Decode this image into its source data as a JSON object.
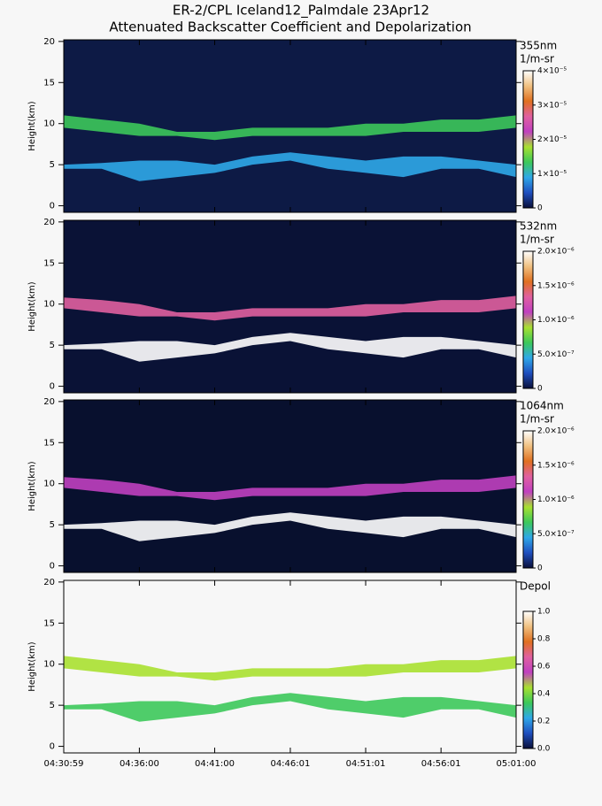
{
  "title": "ER-2/CPL Iceland12_Palmdale 23Apr12",
  "subtitle": "Attenuated Backscatter Coefficient and Depolarization",
  "x_axis": {
    "xlim": [
      "04:30:59",
      "05:01:00"
    ],
    "xticks": [
      "04:30:59",
      "04:36:00",
      "04:41:00",
      "04:46:01",
      "04:51:01",
      "04:56:01",
      "05:01:00"
    ]
  },
  "colormap": [
    "#0a0f3a",
    "#1f4fbf",
    "#2fa8e8",
    "#3cc85a",
    "#a8e030",
    "#c040c0",
    "#e060a0",
    "#e07020",
    "#f0c080",
    "#ffffff"
  ],
  "chart_data": [
    {
      "type": "curtain",
      "ylabel": "Height(km)",
      "ylim": [
        -0.8,
        20.2
      ],
      "yticks": [
        0,
        5,
        10,
        15,
        20
      ],
      "background": "#0d1a45",
      "colorbar": {
        "title": "355nm",
        "unit": "1/m-sr",
        "lim": [
          0,
          4e-05
        ],
        "ticks": [
          {
            "value": 0,
            "label": "0"
          },
          {
            "value": 1e-05,
            "label": "1×10⁻⁵"
          },
          {
            "value": 2e-05,
            "label": "2×10⁻⁵"
          },
          {
            "value": 3e-05,
            "label": "3×10⁻⁵"
          },
          {
            "value": 4e-05,
            "label": "4×10⁻⁵"
          }
        ]
      },
      "x": [
        "04:30:59",
        "04:33:30",
        "04:36:00",
        "04:38:30",
        "04:41:00",
        "04:43:30",
        "04:46:01",
        "04:48:31",
        "04:51:01",
        "04:53:31",
        "04:56:01",
        "04:58:31",
        "05:01:00"
      ],
      "layers": [
        {
          "top": [
            11,
            10.5,
            10,
            9,
            9,
            9.5,
            9.5,
            9.5,
            10,
            10,
            10.5,
            10.5,
            11
          ],
          "base": [
            9.5,
            9,
            8.5,
            8.5,
            8,
            8.5,
            8.5,
            8.5,
            8.5,
            9,
            9,
            9,
            9.5
          ],
          "level": 1.5e-05
        },
        {
          "top": [
            5,
            5.2,
            5.5,
            5.5,
            5,
            6,
            6.5,
            6,
            5.5,
            6,
            6,
            5.5,
            5
          ],
          "base": [
            4.5,
            4.5,
            3,
            3.5,
            4,
            5,
            5.5,
            4.5,
            4,
            3.5,
            4.5,
            4.5,
            3.5
          ],
          "level": 8e-06
        }
      ]
    },
    {
      "type": "curtain",
      "ylabel": "Height(km)",
      "ylim": [
        -0.8,
        20.2
      ],
      "yticks": [
        0,
        5,
        10,
        15,
        20
      ],
      "background": "#0a1236",
      "colorbar": {
        "title": "532nm",
        "unit": "1/m-sr",
        "lim": [
          0,
          2e-06
        ],
        "ticks": [
          {
            "value": 0,
            "label": "0"
          },
          {
            "value": 5e-07,
            "label": "5.0×10⁻⁷"
          },
          {
            "value": 1e-06,
            "label": "1.0×10⁻⁶"
          },
          {
            "value": 1.5e-06,
            "label": "1.5×10⁻⁶"
          },
          {
            "value": 2e-06,
            "label": "2.0×10⁻⁶"
          }
        ]
      },
      "x": [
        "04:30:59",
        "04:33:30",
        "04:36:00",
        "04:38:30",
        "04:41:00",
        "04:43:30",
        "04:46:01",
        "04:48:31",
        "04:51:01",
        "04:53:31",
        "04:56:01",
        "04:58:31",
        "05:01:00"
      ],
      "layers": [
        {
          "top": [
            10.8,
            10.5,
            10,
            9,
            9,
            9.5,
            9.5,
            9.5,
            10,
            10,
            10.5,
            10.5,
            11
          ],
          "base": [
            9.5,
            9,
            8.5,
            8.5,
            8,
            8.5,
            8.5,
            8.5,
            8.5,
            9,
            9,
            9,
            9.5
          ],
          "level": 1.3e-06
        },
        {
          "top": [
            5,
            5.2,
            5.5,
            5.5,
            5,
            6,
            6.5,
            6,
            5.5,
            6,
            6,
            5.5,
            5
          ],
          "base": [
            4.5,
            4.5,
            3,
            3.5,
            4,
            5,
            5.5,
            4.5,
            4,
            3.5,
            4.5,
            4.5,
            3.5
          ],
          "level": 1.9e-06
        }
      ]
    },
    {
      "type": "curtain",
      "ylabel": "Height(km)",
      "ylim": [
        -0.8,
        20.2
      ],
      "yticks": [
        0,
        5,
        10,
        15,
        20
      ],
      "background": "#08102e",
      "colorbar": {
        "title": "1064nm",
        "unit": "1/m-sr",
        "lim": [
          0,
          2e-06
        ],
        "ticks": [
          {
            "value": 0,
            "label": "0"
          },
          {
            "value": 5e-07,
            "label": "5.0×10⁻⁷"
          },
          {
            "value": 1e-06,
            "label": "1.0×10⁻⁶"
          },
          {
            "value": 1.5e-06,
            "label": "1.5×10⁻⁶"
          },
          {
            "value": 2e-06,
            "label": "2.0×10⁻⁶"
          }
        ]
      },
      "x": [
        "04:30:59",
        "04:33:30",
        "04:36:00",
        "04:38:30",
        "04:41:00",
        "04:43:30",
        "04:46:01",
        "04:48:31",
        "04:51:01",
        "04:53:31",
        "04:56:01",
        "04:58:31",
        "05:01:00"
      ],
      "layers": [
        {
          "top": [
            10.8,
            10.5,
            10,
            9,
            9,
            9.5,
            9.5,
            9.5,
            10,
            10,
            10.5,
            10.5,
            11
          ],
          "base": [
            9.5,
            9,
            8.5,
            8.5,
            8,
            8.5,
            8.5,
            8.5,
            8.5,
            9,
            9,
            9,
            9.5
          ],
          "level": 1.1e-06
        },
        {
          "top": [
            5,
            5.2,
            5.5,
            5.5,
            5,
            6,
            6.5,
            6,
            5.5,
            6,
            6,
            5.5,
            5
          ],
          "base": [
            4.5,
            4.5,
            3,
            3.5,
            4,
            5,
            5.5,
            4.5,
            4,
            3.5,
            4.5,
            4.5,
            3.5
          ],
          "level": 1.9e-06
        }
      ]
    },
    {
      "type": "curtain",
      "ylabel": "Height(km)",
      "ylim": [
        -0.8,
        20.2
      ],
      "yticks": [
        0,
        5,
        10,
        15,
        20
      ],
      "background": "#f7f7f7",
      "colorbar": {
        "title": "Depol",
        "lim": [
          0,
          1
        ],
        "ticks": [
          {
            "value": 0,
            "label": "0.0"
          },
          {
            "value": 0.2,
            "label": "0.2"
          },
          {
            "value": 0.4,
            "label": "0.4"
          },
          {
            "value": 0.6,
            "label": "0.6"
          },
          {
            "value": 0.8,
            "label": "0.8"
          },
          {
            "value": 1,
            "label": "1.0"
          }
        ]
      },
      "x": [
        "04:30:59",
        "04:33:30",
        "04:36:00",
        "04:38:30",
        "04:41:00",
        "04:43:30",
        "04:46:01",
        "04:48:31",
        "04:51:01",
        "04:53:31",
        "04:56:01",
        "04:58:31",
        "05:01:00"
      ],
      "layers": [
        {
          "top": [
            11,
            10.5,
            10,
            9,
            9,
            9.5,
            9.5,
            9.5,
            10,
            10,
            10.5,
            10.5,
            11
          ],
          "base": [
            9.5,
            9,
            8.5,
            8.5,
            8,
            8.5,
            8.5,
            8.5,
            8.5,
            9,
            9,
            9,
            9.5
          ],
          "level": 0.4
        },
        {
          "top": [
            5,
            5.2,
            5.5,
            5.5,
            5,
            6,
            6.5,
            6,
            5.5,
            6,
            6,
            5.5,
            5
          ],
          "base": [
            4.5,
            4.5,
            3,
            3.5,
            4,
            5,
            5.5,
            4.5,
            4,
            3.5,
            4.5,
            4.5,
            3.5
          ],
          "level": 0.35
        }
      ]
    }
  ]
}
